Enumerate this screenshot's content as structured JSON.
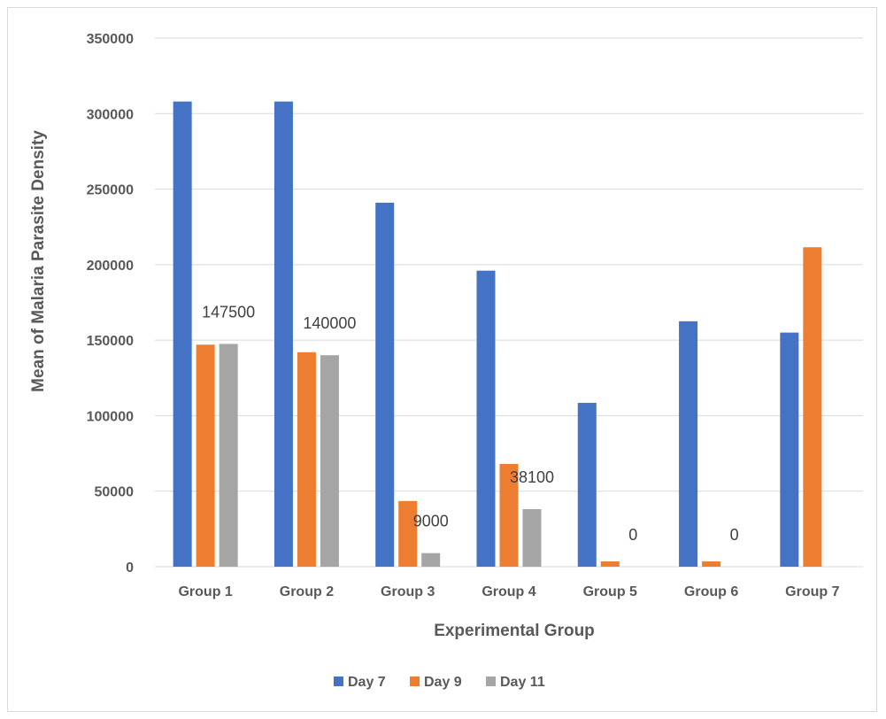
{
  "chart_data": {
    "type": "bar",
    "title": "",
    "xlabel": "Experimental Group",
    "ylabel": "Mean of Malaria Parasite Density",
    "ylim": [
      0,
      350000
    ],
    "yticks": [
      "0",
      "50000",
      "100000",
      "150000",
      "200000",
      "250000",
      "300000",
      "350000"
    ],
    "grid": true,
    "legend_position": "bottom",
    "categories": [
      "Group 1",
      "Group 2",
      "Group 3",
      "Group 4",
      "Group 5",
      "Group 6",
      "Group 7"
    ],
    "series": [
      {
        "name": "Day 7",
        "color": "#4472c4",
        "values": [
          308000,
          308000,
          241000,
          196000,
          108500,
          162500,
          155000
        ]
      },
      {
        "name": "Day 9",
        "color": "#ed7d31",
        "values": [
          147000,
          142000,
          43500,
          68000,
          3500,
          3500,
          211500
        ]
      },
      {
        "name": "Day 11",
        "color": "#a5a5a5",
        "values": [
          147500,
          140000,
          9000,
          38100,
          0,
          0,
          null
        ]
      }
    ],
    "data_labels": [
      {
        "series": "Day 11",
        "category": "Group 1",
        "text": "147500"
      },
      {
        "series": "Day 11",
        "category": "Group 2",
        "text": "140000"
      },
      {
        "series": "Day 11",
        "category": "Group 3",
        "text": "9000"
      },
      {
        "series": "Day 11",
        "category": "Group 4",
        "text": "38100"
      },
      {
        "series": "Day 11",
        "category": "Group 5",
        "text": "0"
      },
      {
        "series": "Day 11",
        "category": "Group 6",
        "text": "0"
      }
    ]
  }
}
